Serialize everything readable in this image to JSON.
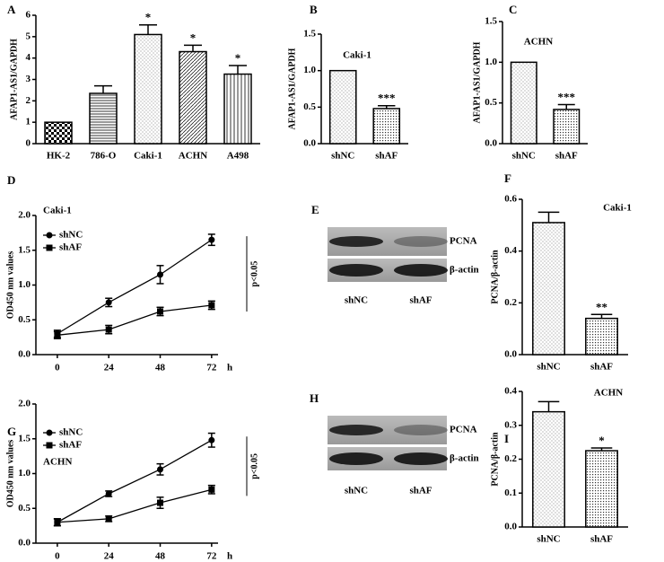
{
  "chart_data": [
    {
      "type": "bar",
      "panel": "A",
      "ylabel": "AFAP1-AS1/GAPDH",
      "categories": [
        "HK-2",
        "786-O",
        "Caki-1",
        "ACHN",
        "A498"
      ],
      "values": [
        1.0,
        2.35,
        5.1,
        4.3,
        3.25
      ],
      "errors": [
        0,
        0.35,
        0.45,
        0.3,
        0.4
      ],
      "annotations": [
        null,
        null,
        "*",
        "*",
        "*"
      ],
      "patterns": [
        "checker",
        "hlines",
        "dots",
        "diag",
        "vlines"
      ],
      "ylim": [
        0,
        6
      ],
      "yticks": [
        0,
        1,
        2,
        3,
        4,
        5,
        6
      ]
    },
    {
      "type": "bar",
      "panel": "B",
      "title": "Caki-1",
      "ylabel": "AFAP1-AS1/GAPDH",
      "categories": [
        "shNC",
        "shAF"
      ],
      "values": [
        1.0,
        0.48
      ],
      "errors": [
        0,
        0.04
      ],
      "annotations": [
        null,
        "***"
      ],
      "patterns": [
        "dots",
        "grid"
      ],
      "ylim": [
        0,
        1.5
      ],
      "yticks": [
        {
          "value": 0,
          "label": "0.0"
        },
        0.5,
        {
          "value": 1,
          "label": "1.0"
        },
        1.5
      ]
    },
    {
      "type": "bar",
      "panel": "C",
      "title": "ACHN",
      "ylabel": "AFAP1-AS1/GAPDH",
      "categories": [
        "shNC",
        "shAF"
      ],
      "values": [
        1.0,
        0.42
      ],
      "errors": [
        0,
        0.06
      ],
      "annotations": [
        null,
        "***"
      ],
      "patterns": [
        "dots",
        "grid"
      ],
      "ylim": [
        0,
        1.5
      ],
      "yticks": [
        {
          "value": 0,
          "label": "0.0"
        },
        0.5,
        {
          "value": 1,
          "label": "1.0"
        },
        1.5
      ]
    },
    {
      "type": "line",
      "panel": "D",
      "title": "Caki-1",
      "ylabel": "OD450 nm values",
      "xlabel": "h",
      "annotation": "p<0.05",
      "x": [
        0,
        24,
        48,
        72
      ],
      "xlim": [
        -10,
        75
      ],
      "xticks": [
        0,
        24,
        48,
        72
      ],
      "ylim": [
        0,
        2
      ],
      "yticks": [
        {
          "value": 0,
          "label": "0.0"
        },
        0.5,
        {
          "value": 1,
          "label": "1.0"
        },
        1.5,
        {
          "value": 2,
          "label": "2.0"
        }
      ],
      "series": [
        {
          "name": "shNC",
          "marker": "circle",
          "values": [
            0.3,
            0.75,
            1.15,
            1.65
          ],
          "errors": [
            0.05,
            0.06,
            0.13,
            0.08
          ]
        },
        {
          "name": "shAF",
          "marker": "square",
          "values": [
            0.28,
            0.36,
            0.62,
            0.71
          ],
          "errors": [
            0.05,
            0.06,
            0.06,
            0.06
          ]
        }
      ]
    },
    {
      "type": "bar",
      "panel": "F",
      "title": "Caki-1",
      "ylabel": "PCNA/β-actin",
      "categories": [
        "shNC",
        "shAF"
      ],
      "values": [
        0.51,
        0.14
      ],
      "errors": [
        0.04,
        0.015
      ],
      "annotations": [
        null,
        "**"
      ],
      "patterns": [
        "dots",
        "grid"
      ],
      "ylim": [
        0,
        0.6
      ],
      "yticks": [
        {
          "value": 0,
          "label": "0.0"
        },
        0.2,
        0.4,
        0.6
      ]
    },
    {
      "type": "line",
      "panel": "G",
      "title": "ACHN",
      "ylabel": "OD450 nm values",
      "xlabel": "h",
      "annotation": "p<0.05",
      "x": [
        0,
        24,
        48,
        72
      ],
      "xlim": [
        -10,
        75
      ],
      "xticks": [
        0,
        24,
        48,
        72
      ],
      "ylim": [
        0,
        2
      ],
      "yticks": [
        {
          "value": 0,
          "label": "0.0"
        },
        0.5,
        {
          "value": 1,
          "label": "1.0"
        },
        1.5,
        {
          "value": 2,
          "label": "2.0"
        }
      ],
      "series": [
        {
          "name": "shNC",
          "marker": "circle",
          "values": [
            0.3,
            0.71,
            1.06,
            1.48
          ],
          "errors": [
            0.05,
            0.04,
            0.08,
            0.1
          ]
        },
        {
          "name": "shAF",
          "marker": "square",
          "values": [
            0.3,
            0.35,
            0.58,
            0.77
          ],
          "errors": [
            0.05,
            0.04,
            0.08,
            0.06
          ]
        }
      ]
    },
    {
      "type": "bar",
      "panel": "I",
      "title": "ACHN",
      "ylabel": "PCNA/β-actin",
      "categories": [
        "shNC",
        "shAF"
      ],
      "values": [
        0.34,
        0.225
      ],
      "errors": [
        0.03,
        0.008
      ],
      "annotations": [
        null,
        "*"
      ],
      "patterns": [
        "dots",
        "grid"
      ],
      "ylim": [
        0,
        0.4
      ],
      "yticks": [
        {
          "value": 0,
          "label": "0.0"
        },
        0.1,
        0.2,
        0.3,
        0.4
      ]
    }
  ],
  "blots": [
    {
      "panel": "E",
      "proteins": [
        "PCNA",
        "β-actin"
      ],
      "lanes": [
        "shNC",
        "shAF"
      ]
    },
    {
      "panel": "H",
      "proteins": [
        "PCNA",
        "β-actin"
      ],
      "lanes": [
        "shNC",
        "shAF"
      ]
    }
  ]
}
